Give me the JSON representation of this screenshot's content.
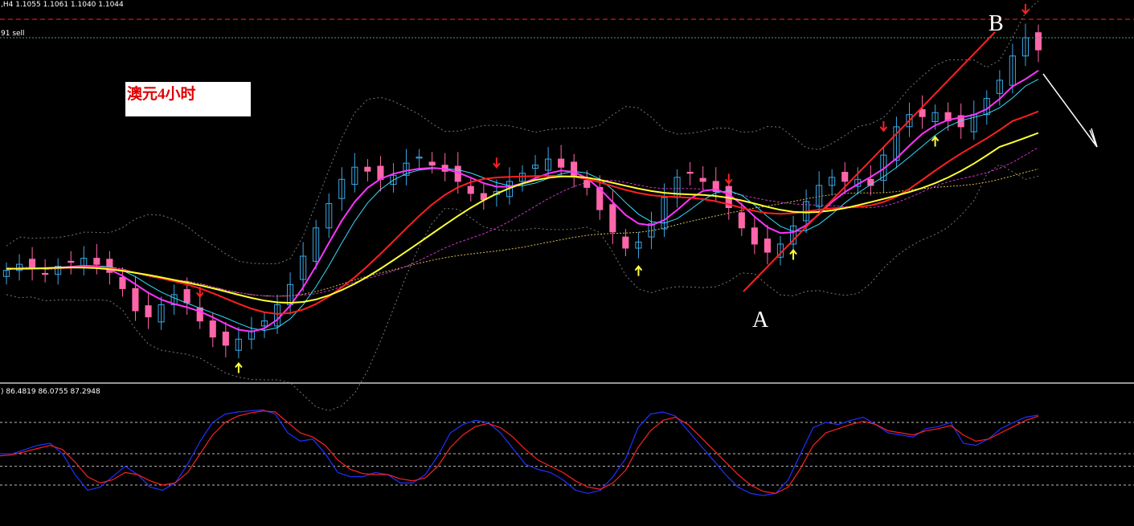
{
  "header": {
    "symbol_info": ",H4  1.1055 1.1061 1.1040 1.1044",
    "order_line_label": "91 sell"
  },
  "annotation": {
    "title_box_text": "澳元4小时",
    "point_a": "A",
    "point_b": "B"
  },
  "oscillator": {
    "values_text": ") 86.4819 86.0755 87.2948"
  },
  "colors": {
    "background": "#000000",
    "candle_up": "#3aa8e6",
    "candle_down": "#ff66aa",
    "ma_red": "#ff2020",
    "ma_yellow": "#ffff30",
    "ma_magenta": "#ff33ff",
    "ma_cyan": "#33ddff",
    "band": "#777777",
    "arrow_down": "#ff2020",
    "arrow_up": "#ffff40",
    "osc_blue": "#2030ff",
    "osc_red": "#ff2020",
    "order_green": "#30b070",
    "order_red": "#ff2020"
  },
  "chart_data": [
    {
      "type": "candlestick",
      "title": "澳元4小时",
      "price_series": [
        1.0995,
        1.0998,
        1.0996,
        1.0993,
        1.0997,
        1.0999,
        1.1001,
        1.0998,
        1.0994,
        1.0986,
        1.0975,
        1.0972,
        1.0978,
        1.0983,
        1.0979,
        1.097,
        1.0962,
        1.0958,
        1.0961,
        1.0965,
        1.097,
        1.0978,
        1.0988,
        1.1002,
        1.1016,
        1.1028,
        1.104,
        1.1046,
        1.1044,
        1.104,
        1.1042,
        1.1048,
        1.1051,
        1.1047,
        1.1044,
        1.1039,
        1.1033,
        1.103,
        1.1034,
        1.1039,
        1.1043,
        1.1047,
        1.105,
        1.1046,
        1.1042,
        1.1036,
        1.1025,
        1.1014,
        1.1006,
        1.1009,
        1.1018,
        1.1031,
        1.1041,
        1.1043,
        1.1039,
        1.1034,
        1.1026,
        1.1016,
        1.1008,
        1.1004,
        1.1008,
        1.1017,
        1.1029,
        1.1037,
        1.1041,
        1.1039,
        1.104,
        1.1037,
        1.1052,
        1.1066,
        1.1072,
        1.1071,
        1.1073,
        1.1069,
        1.1066,
        1.1072,
        1.108,
        1.1089,
        1.1101,
        1.111,
        1.1104
      ],
      "moving_averages": [
        {
          "name": "",
          "color": "#ff2020"
        },
        {
          "name": "",
          "color": "#ffff30"
        },
        {
          "name": "",
          "color": "#ff33ff"
        },
        {
          "name": "",
          "color": "#33ddff"
        }
      ],
      "signals": {
        "down_arrows_at": [
          15,
          38,
          56,
          68,
          79
        ],
        "up_arrows_at": [
          18,
          49,
          61,
          72
        ]
      }
    },
    {
      "type": "line",
      "title": "",
      "series": [
        {
          "values": [
            50,
            50,
            54,
            58,
            60,
            50,
            30,
            15,
            18,
            28,
            38,
            30,
            18,
            15,
            22,
            40,
            62,
            80,
            88,
            90,
            91,
            92,
            88,
            70,
            62,
            64,
            50,
            32,
            28,
            28,
            32,
            30,
            22,
            22,
            30,
            48,
            70,
            78,
            82,
            80,
            70,
            55,
            40,
            35,
            32,
            25,
            15,
            12,
            15,
            28,
            45,
            75,
            88,
            90,
            86,
            72,
            58,
            44,
            30,
            18,
            12,
            10,
            12,
            25,
            50,
            75,
            80,
            78,
            82,
            85,
            78,
            70,
            68,
            66,
            74,
            76,
            80,
            60,
            58,
            64,
            74,
            80,
            85,
            87
          ]
        },
        {
          "values": [
            48,
            49,
            52,
            55,
            58,
            54,
            42,
            28,
            22,
            25,
            32,
            30,
            24,
            20,
            22,
            32,
            50,
            68,
            80,
            86,
            89,
            91,
            90,
            80,
            70,
            66,
            58,
            44,
            35,
            31,
            30,
            30,
            26,
            24,
            27,
            38,
            56,
            68,
            76,
            79,
            75,
            66,
            54,
            44,
            38,
            32,
            24,
            18,
            16,
            22,
            34,
            56,
            72,
            82,
            85,
            78,
            66,
            54,
            42,
            30,
            20,
            14,
            12,
            18,
            36,
            58,
            70,
            74,
            78,
            81,
            78,
            72,
            70,
            68,
            72,
            74,
            77,
            68,
            62,
            64,
            70,
            76,
            82,
            86
          ]
        }
      ],
      "ylim": [
        0,
        100
      ]
    }
  ]
}
